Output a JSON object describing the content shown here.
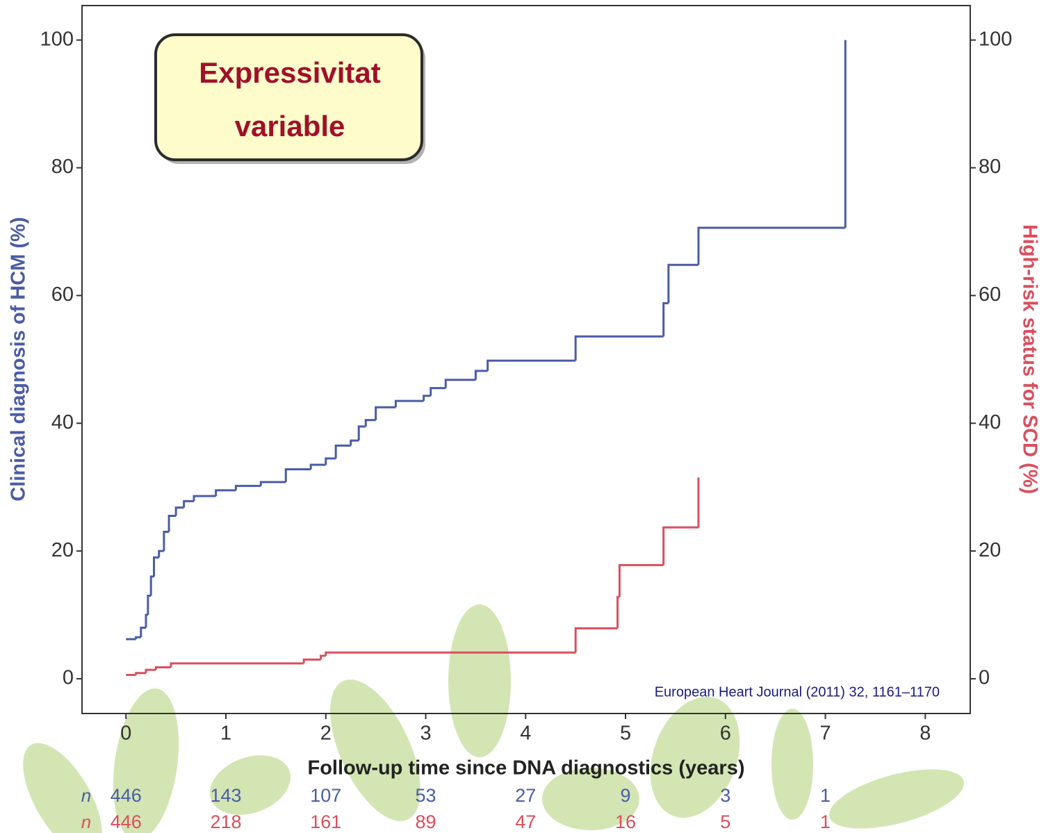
{
  "chart_data": {
    "type": "step",
    "xlabel": "Follow-up time since DNA diagnostics (years)",
    "ylabel": "Clinical diagnosis of HCM (%)",
    "y2label": "High-risk status for SCD (%)",
    "annotation": [
      "Expressivitat",
      "variable"
    ],
    "source": "European Heart Journal (2011) 32, 1161–1170",
    "xlim": [
      -0.44,
      8.45
    ],
    "xticks": [
      0,
      1,
      2,
      3,
      4,
      5,
      6,
      7,
      8
    ],
    "ylim": [
      -5.44,
      105.4
    ],
    "yticks": [
      0,
      20,
      40,
      60,
      80,
      100
    ],
    "y2lim": [
      -5.44,
      105.4
    ],
    "y2ticks": [
      0,
      20,
      40,
      60,
      80,
      100
    ],
    "series": [
      {
        "color": "#4a5ca6",
        "axis": "y",
        "x": [
          0,
          0.1,
          0.15,
          0.2,
          0.22,
          0.25,
          0.28,
          0.33,
          0.38,
          0.43,
          0.5,
          0.58,
          0.68,
          0.9,
          1.1,
          1.35,
          1.6,
          1.85,
          2.0,
          2.1,
          2.25,
          2.33,
          2.4,
          2.5,
          2.7,
          2.98,
          3.05,
          3.2,
          3.5,
          3.62,
          4.5,
          5.38,
          5.43,
          5.73,
          7.2
        ],
        "values": [
          6.2,
          6.5,
          8,
          10,
          13,
          16,
          19,
          20,
          23,
          25.5,
          26.8,
          27.8,
          28.6,
          29.5,
          30.2,
          30.8,
          32.8,
          33.5,
          34.5,
          36.5,
          37.3,
          39.5,
          40.5,
          42.5,
          43.5,
          44.3,
          45.5,
          46.8,
          48.2,
          49.8,
          53.6,
          58.8,
          64.8,
          70.6,
          100
        ]
      },
      {
        "color": "#d94f5e",
        "axis": "y2",
        "x": [
          0,
          0.1,
          0.2,
          0.3,
          0.45,
          1.78,
          1.95,
          2.0,
          4.5,
          4.92,
          4.94,
          5.38,
          5.73
        ],
        "values": [
          0.6,
          0.9,
          1.4,
          1.8,
          2.4,
          3.0,
          3.6,
          4.1,
          7.9,
          12.8,
          17.8,
          23.7,
          31.5
        ]
      }
    ],
    "risk_table": {
      "label": "n",
      "rows": [
        {
          "color": "#4a5ca6",
          "values": [
            446,
            143,
            107,
            53,
            27,
            9,
            3,
            1
          ]
        },
        {
          "color": "#d94f5e",
          "values": [
            446,
            218,
            161,
            89,
            47,
            16,
            5,
            1
          ]
        }
      ]
    }
  }
}
